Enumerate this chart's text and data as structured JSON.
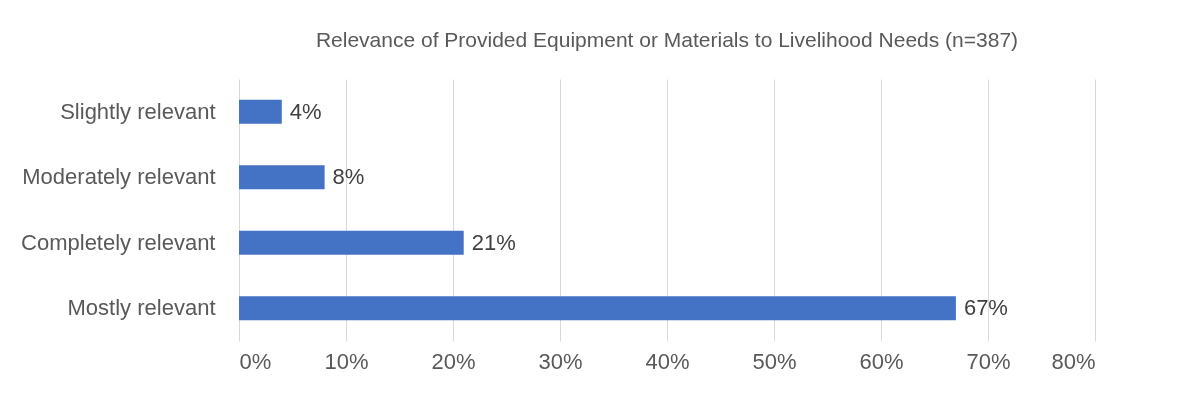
{
  "chart_data": {
    "type": "bar",
    "orientation": "horizontal",
    "title": "Relevance of Provided Equipment or Materials to Livelihood Needs (n=387)",
    "categories": [
      "Slightly relevant",
      "Moderately relevant",
      "Completely relevant",
      "Mostly relevant"
    ],
    "values": [
      4,
      8,
      21,
      67
    ],
    "color": "#4472c4",
    "value_labels": [
      "4%",
      "8%",
      "21%",
      "67%"
    ],
    "xlim": [
      0,
      80
    ],
    "xticks": [
      {
        "value": 0,
        "label": "0%"
      },
      {
        "value": 10,
        "label": "10%"
      },
      {
        "value": 20,
        "label": "20%"
      },
      {
        "value": 30,
        "label": "30%"
      },
      {
        "value": 40,
        "label": "40%"
      },
      {
        "value": 50,
        "label": "50%"
      },
      {
        "value": 60,
        "label": "60%"
      },
      {
        "value": 70,
        "label": "70%"
      },
      {
        "value": 80,
        "label": "80%"
      }
    ],
    "grid": "x"
  }
}
